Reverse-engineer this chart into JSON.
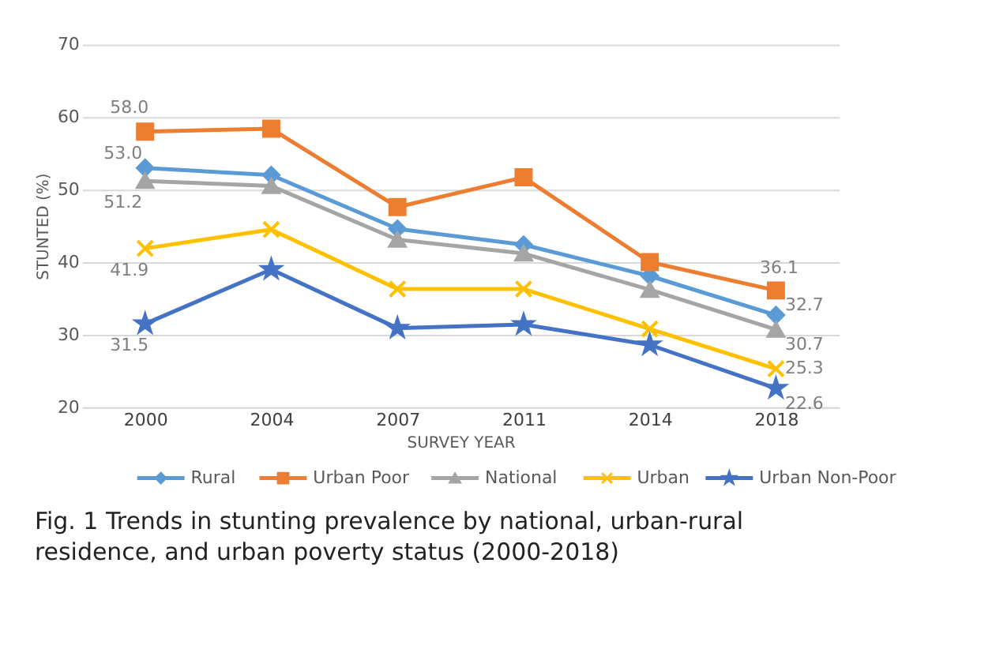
{
  "chart_data": {
    "type": "line",
    "xlabel": "SURVEY YEAR",
    "ylabel": "STUNTED (%)",
    "categories": [
      "2000",
      "2004",
      "2007",
      "2011",
      "2014",
      "2018"
    ],
    "series": [
      {
        "name": "Rural",
        "color": "#5b9bd5",
        "marker": "diamond",
        "values": [
          53.0,
          52.0,
          44.6,
          42.4,
          38.1,
          32.7
        ],
        "value_labels": [
          "53.0",
          null,
          null,
          null,
          null,
          "32.7"
        ]
      },
      {
        "name": "Urban Poor",
        "color": "#ed7d31",
        "marker": "square",
        "values": [
          58.0,
          58.4,
          47.6,
          51.7,
          40.0,
          36.1
        ],
        "value_labels": [
          "58.0",
          null,
          null,
          null,
          null,
          "36.1"
        ]
      },
      {
        "name": "National",
        "color": "#a5a5a5",
        "marker": "triangle",
        "values": [
          51.2,
          50.5,
          43.1,
          41.2,
          36.2,
          30.7
        ],
        "value_labels": [
          "51.2",
          null,
          null,
          null,
          null,
          "30.7"
        ]
      },
      {
        "name": "Urban",
        "color": "#ffc000",
        "marker": "cross",
        "values": [
          41.9,
          44.5,
          36.3,
          36.3,
          30.8,
          25.3
        ],
        "value_labels": [
          "41.9",
          null,
          null,
          null,
          null,
          "25.3"
        ]
      },
      {
        "name": "Urban Non-Poor",
        "color": "#4472c4",
        "marker": "star",
        "values": [
          31.5,
          39.0,
          30.9,
          31.4,
          28.6,
          22.6
        ],
        "value_labels": [
          "31.5",
          null,
          null,
          null,
          null,
          "22.6"
        ]
      }
    ],
    "ylim": [
      20,
      70
    ],
    "yticks": [
      20,
      30,
      40,
      50,
      60,
      70
    ],
    "grid": "y",
    "legend": "bottom",
    "line_style": "solid",
    "annotations": [
      "Fig. 1 Trends in stunting prevalence by national, urban-rural residence, and urban poverty status (2000-2018)"
    ]
  }
}
